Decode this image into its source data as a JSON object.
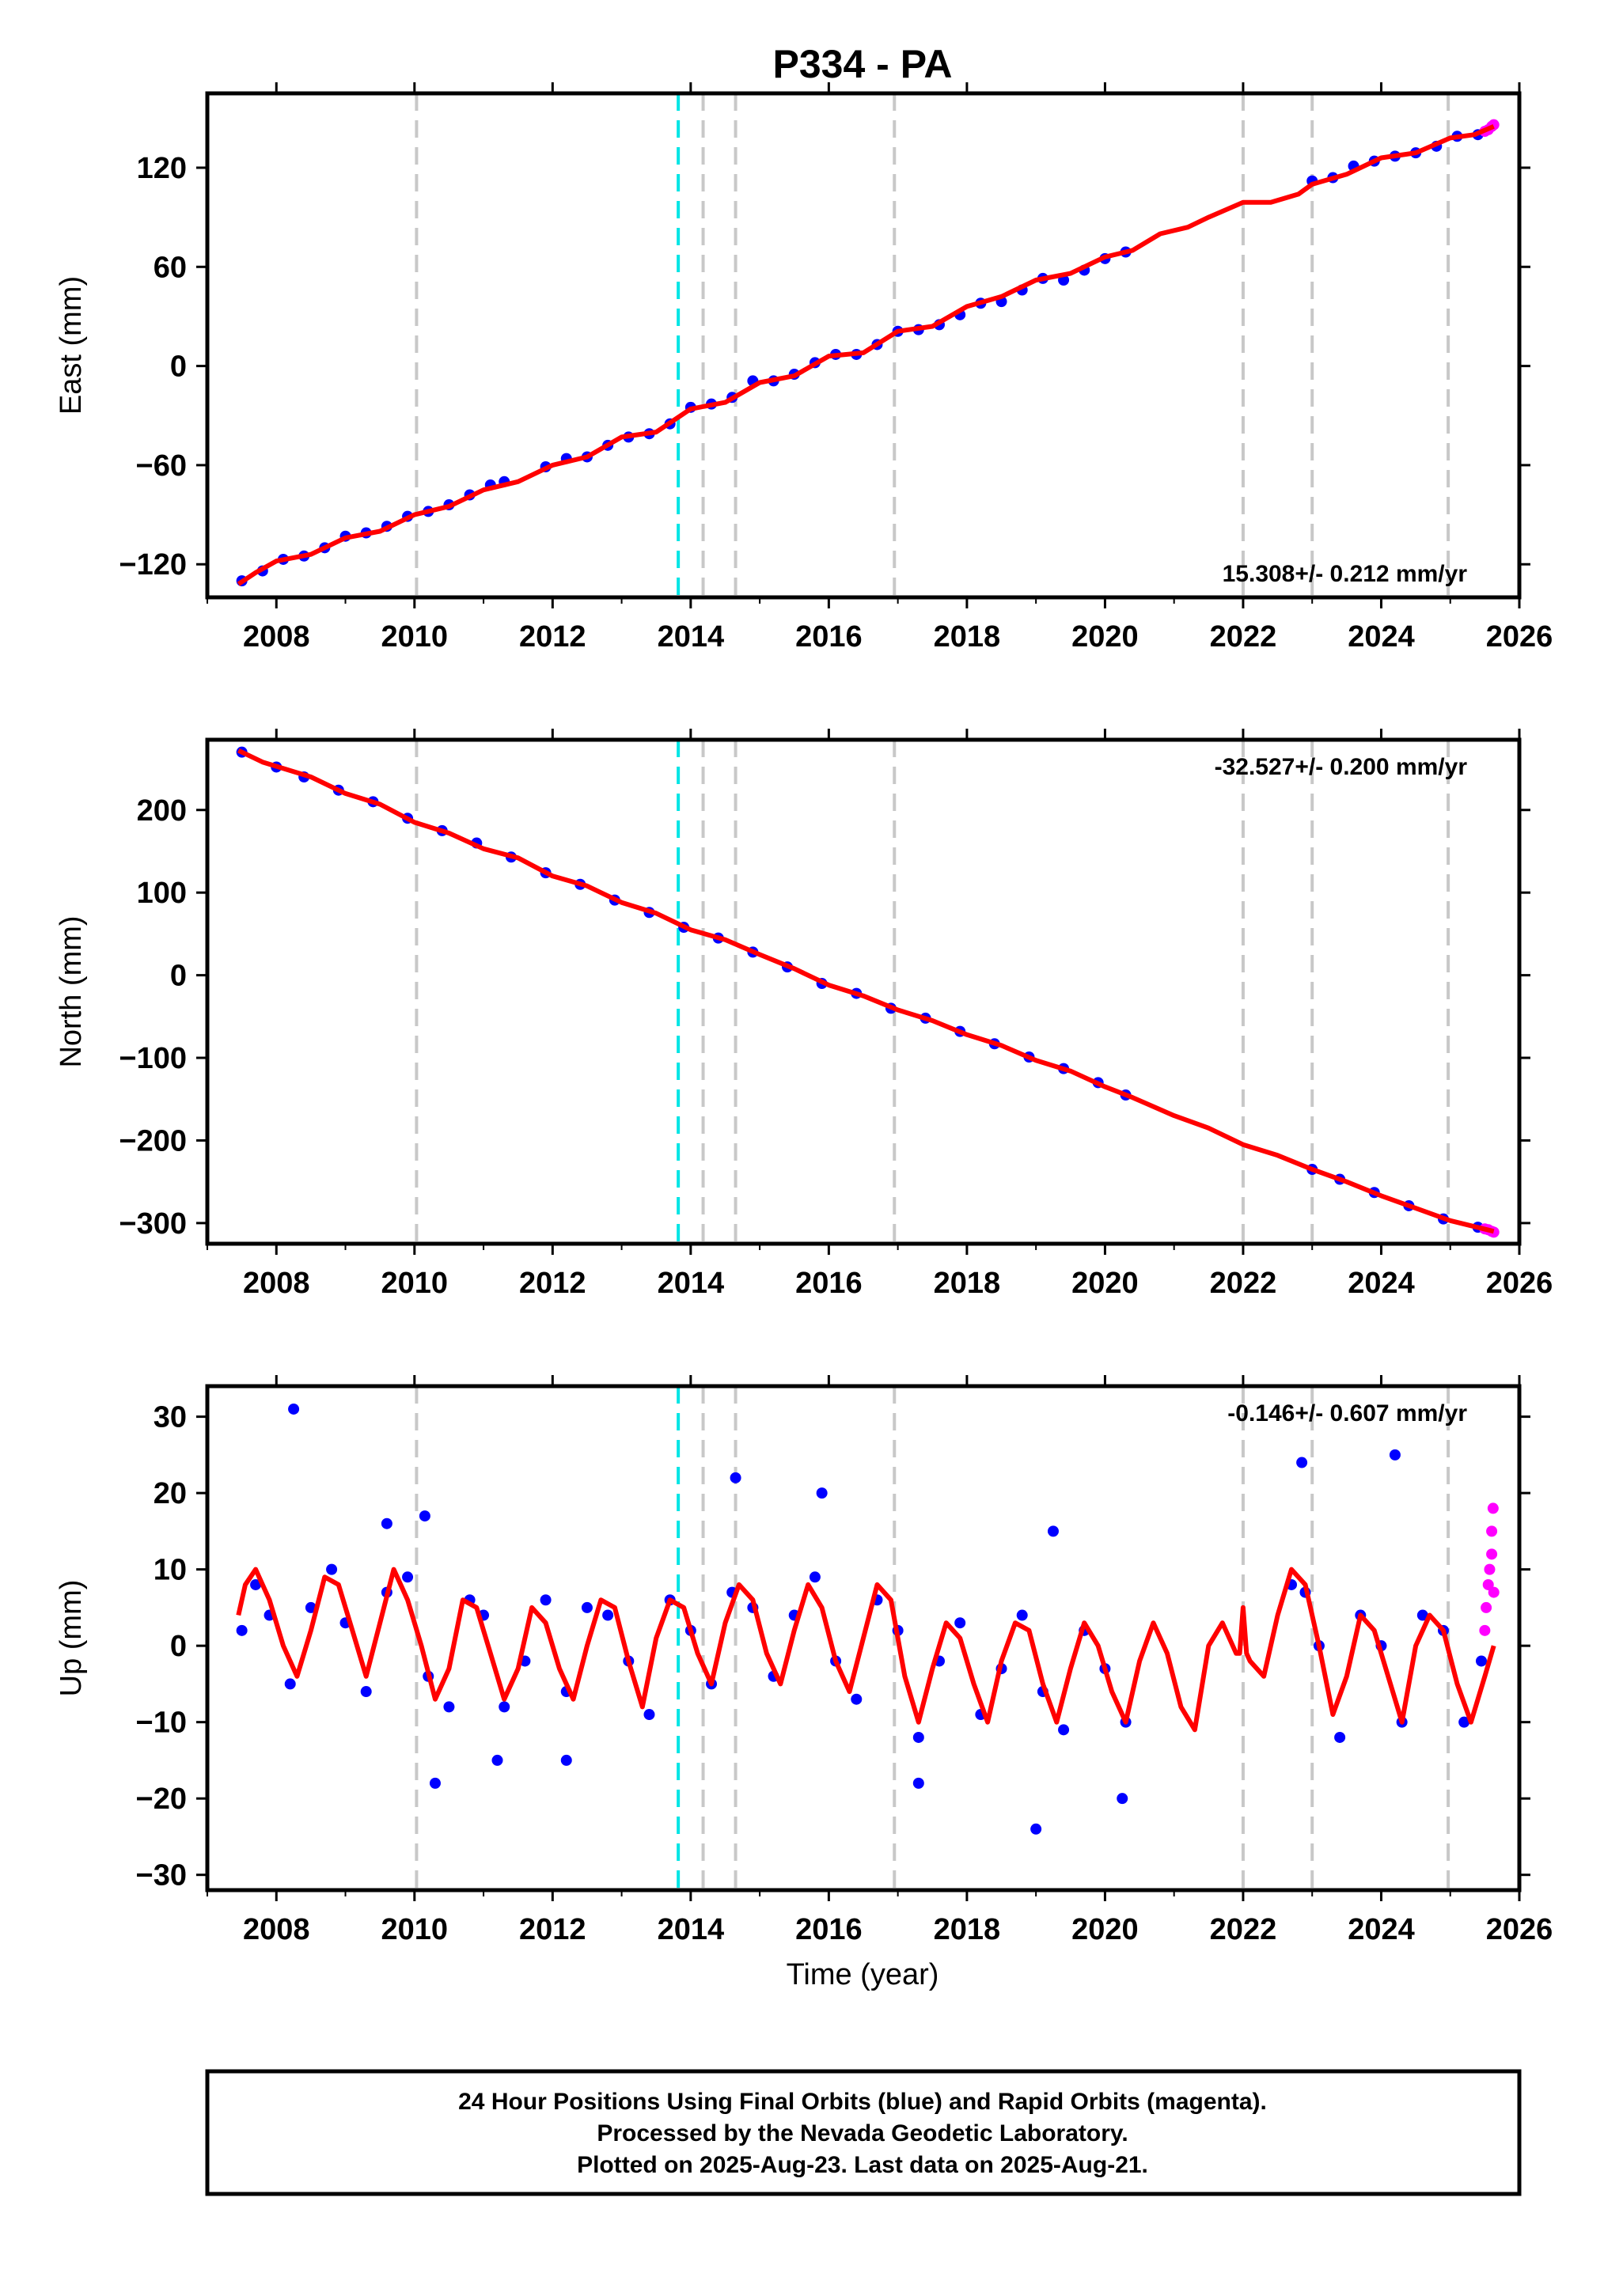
{
  "title": "P334 - PA",
  "xlabel": "Time (year)",
  "caption": [
    "24 Hour Positions Using Final Orbits (blue) and Rapid Orbits (magenta).",
    "Processed by the Nevada Geodetic Laboratory.",
    "Plotted on 2025-Aug-23. Last data on 2025-Aug-21."
  ],
  "colors": {
    "final_orbits": "#0000ff",
    "rapid_orbits": "#ff00ff",
    "model_fit": "#ff0000",
    "event_gray": "#c8c8c8",
    "event_cyan": "#00e5e5"
  },
  "chart_data": [
    {
      "type": "scatter",
      "name": "east",
      "ylabel": "East (mm)",
      "rate_label": "15.308+/- 0.212 mm/yr",
      "rate_position": "bottom-right",
      "xlim": [
        2007.0,
        2026.0
      ],
      "ylim": [
        -140,
        165
      ],
      "xticks": [
        2008,
        2010,
        2012,
        2014,
        2016,
        2018,
        2020,
        2022,
        2024,
        2026
      ],
      "yticks": [
        -120,
        -60,
        0,
        60,
        120
      ],
      "events_gray": [
        2010.03,
        2014.18,
        2014.65,
        2016.95,
        2022.0,
        2023.0,
        2024.97
      ],
      "events_cyan": [
        2013.82
      ],
      "series": [
        {
          "role": "fit",
          "color": "#ff0000",
          "x": [
            2007.45,
            2007.7,
            2008.0,
            2008.5,
            2009.0,
            2009.5,
            2010.0,
            2010.5,
            2011.0,
            2011.5,
            2012.0,
            2012.5,
            2013.0,
            2013.5,
            2014.0,
            2014.5,
            2015.0,
            2015.5,
            2016.0,
            2016.5,
            2017.0,
            2017.5,
            2018.0,
            2018.5,
            2019.0,
            2019.5,
            2020.0,
            2020.4,
            2020.8,
            2021.2,
            2021.5,
            2022.0,
            2022.4,
            2022.8,
            2023.0,
            2023.5,
            2024.0,
            2024.5,
            2025.0,
            2025.35,
            2025.63
          ],
          "y": [
            -132,
            -125,
            -118,
            -114,
            -104,
            -100,
            -90,
            -85,
            -75,
            -70,
            -60,
            -55,
            -43,
            -40,
            -26,
            -22,
            -10,
            -6,
            6,
            8,
            21,
            24,
            36,
            42,
            52,
            56,
            66,
            70,
            80,
            84,
            90,
            99,
            99,
            104,
            110,
            116,
            126,
            129,
            138,
            140,
            145
          ]
        },
        {
          "role": "final_orbits",
          "color": "#0000ff",
          "x": [
            2007.5,
            2007.8,
            2008.1,
            2008.4,
            2008.7,
            2009.0,
            2009.3,
            2009.6,
            2009.9,
            2010.2,
            2010.5,
            2010.8,
            2011.1,
            2011.3,
            2011.9,
            2012.2,
            2012.5,
            2012.8,
            2013.1,
            2013.4,
            2013.7,
            2014.0,
            2014.3,
            2014.6,
            2014.9,
            2015.2,
            2015.5,
            2015.8,
            2016.1,
            2016.4,
            2016.7,
            2017.0,
            2017.3,
            2017.6,
            2017.9,
            2018.2,
            2018.5,
            2018.8,
            2019.1,
            2019.4,
            2019.7,
            2020.0,
            2020.3,
            2023.0,
            2023.3,
            2023.6,
            2023.9,
            2024.2,
            2024.5,
            2024.8,
            2025.1,
            2025.4
          ],
          "y": [
            -130,
            -124,
            -117,
            -115,
            -110,
            -103,
            -101,
            -97,
            -91,
            -88,
            -84,
            -78,
            -72,
            -70,
            -61,
            -56,
            -55,
            -48,
            -43,
            -41,
            -35,
            -25,
            -23,
            -19,
            -9,
            -9,
            -5,
            2,
            7,
            7,
            13,
            21,
            22,
            25,
            31,
            38,
            39,
            46,
            53,
            52,
            58,
            65,
            69,
            112,
            114,
            121,
            124,
            127,
            129,
            133,
            139,
            140
          ]
        },
        {
          "role": "rapid_orbits",
          "color": "#ff00ff",
          "x": [
            2025.5,
            2025.55,
            2025.6,
            2025.63
          ],
          "y": [
            142,
            143,
            145,
            146
          ]
        }
      ]
    },
    {
      "type": "scatter",
      "name": "north",
      "ylabel": "North (mm)",
      "rate_label": "-32.527+/- 0.200 mm/yr",
      "rate_position": "top-right",
      "xlim": [
        2007.0,
        2026.0
      ],
      "ylim": [
        -325,
        285
      ],
      "xticks": [
        2008,
        2010,
        2012,
        2014,
        2016,
        2018,
        2020,
        2022,
        2024,
        2026
      ],
      "yticks": [
        -300,
        -200,
        -100,
        0,
        100,
        200
      ],
      "events_gray": [
        2010.03,
        2014.18,
        2014.65,
        2016.95,
        2022.0,
        2023.0,
        2024.97
      ],
      "events_cyan": [
        2013.82
      ],
      "series": [
        {
          "role": "fit",
          "color": "#ff0000",
          "x": [
            2007.45,
            2007.8,
            2008.5,
            2009.0,
            2009.5,
            2010.0,
            2010.5,
            2011.0,
            2011.5,
            2012.0,
            2012.5,
            2013.0,
            2013.5,
            2014.0,
            2014.5,
            2015.0,
            2015.5,
            2016.0,
            2016.5,
            2017.0,
            2017.5,
            2018.0,
            2018.5,
            2019.0,
            2019.5,
            2020.0,
            2020.4,
            2021.0,
            2021.5,
            2022.0,
            2022.5,
            2023.0,
            2023.5,
            2024.0,
            2024.5,
            2025.0,
            2025.63
          ],
          "y": [
            272,
            258,
            240,
            220,
            207,
            185,
            172,
            153,
            142,
            120,
            108,
            88,
            75,
            55,
            43,
            25,
            8,
            -12,
            -25,
            -42,
            -55,
            -72,
            -85,
            -103,
            -116,
            -135,
            -148,
            -170,
            -185,
            -205,
            -218,
            -235,
            -250,
            -267,
            -282,
            -297,
            -310
          ]
        },
        {
          "role": "final_orbits",
          "color": "#0000ff",
          "x": [
            2007.5,
            2008.0,
            2008.4,
            2008.9,
            2009.4,
            2009.9,
            2010.4,
            2010.9,
            2011.4,
            2011.9,
            2012.4,
            2012.9,
            2013.4,
            2013.9,
            2014.4,
            2014.9,
            2015.4,
            2015.9,
            2016.4,
            2016.9,
            2017.4,
            2017.9,
            2018.4,
            2018.9,
            2019.4,
            2019.9,
            2020.3,
            2023.0,
            2023.4,
            2023.9,
            2024.4,
            2024.9,
            2025.4
          ],
          "y": [
            270,
            252,
            240,
            224,
            210,
            190,
            175,
            160,
            143,
            124,
            110,
            91,
            76,
            58,
            45,
            28,
            10,
            -10,
            -22,
            -40,
            -52,
            -68,
            -83,
            -99,
            -113,
            -130,
            -145,
            -235,
            -247,
            -263,
            -279,
            -295,
            -305
          ]
        },
        {
          "role": "rapid_orbits",
          "color": "#ff00ff",
          "x": [
            2025.5,
            2025.55,
            2025.6,
            2025.63
          ],
          "y": [
            -307,
            -308,
            -310,
            -311
          ]
        }
      ]
    },
    {
      "type": "scatter",
      "name": "up",
      "ylabel": "Up (mm)",
      "rate_label": "-0.146+/- 0.607 mm/yr",
      "rate_position": "top-right",
      "xlim": [
        2007.0,
        2026.0
      ],
      "ylim": [
        -32,
        34
      ],
      "xticks": [
        2008,
        2010,
        2012,
        2014,
        2016,
        2018,
        2020,
        2022,
        2024,
        2026
      ],
      "yticks": [
        -30,
        -20,
        -10,
        0,
        10,
        20,
        30
      ],
      "events_gray": [
        2010.03,
        2014.18,
        2014.65,
        2016.95,
        2022.0,
        2023.0,
        2024.97
      ],
      "events_cyan": [
        2013.82
      ],
      "series": [
        {
          "role": "fit",
          "color": "#ff0000",
          "x": [
            2007.45,
            2007.55,
            2007.7,
            2007.9,
            2008.1,
            2008.3,
            2008.5,
            2008.7,
            2008.9,
            2009.1,
            2009.3,
            2009.5,
            2009.7,
            2009.9,
            2010.1,
            2010.3,
            2010.5,
            2010.7,
            2010.9,
            2011.1,
            2011.3,
            2011.5,
            2011.7,
            2011.9,
            2012.1,
            2012.3,
            2012.5,
            2012.7,
            2012.9,
            2013.1,
            2013.3,
            2013.5,
            2013.7,
            2013.9,
            2014.1,
            2014.3,
            2014.5,
            2014.7,
            2014.9,
            2015.1,
            2015.3,
            2015.5,
            2015.7,
            2015.9,
            2016.1,
            2016.3,
            2016.5,
            2016.7,
            2016.9,
            2017.1,
            2017.3,
            2017.5,
            2017.7,
            2017.9,
            2018.1,
            2018.3,
            2018.5,
            2018.7,
            2018.9,
            2019.1,
            2019.3,
            2019.5,
            2019.7,
            2019.9,
            2020.1,
            2020.3,
            2020.5,
            2020.7,
            2020.9,
            2021.1,
            2021.3,
            2021.5,
            2021.7,
            2021.9,
            2021.95,
            2022.0,
            2022.05,
            2022.1,
            2022.3,
            2022.5,
            2022.7,
            2022.9,
            2023.1,
            2023.3,
            2023.5,
            2023.7,
            2023.9,
            2024.1,
            2024.3,
            2024.5,
            2024.7,
            2024.9,
            2025.1,
            2025.3,
            2025.5,
            2025.63
          ],
          "y": [
            4,
            8,
            10,
            6,
            0,
            -4,
            2,
            9,
            8,
            2,
            -4,
            3,
            10,
            6,
            0,
            -7,
            -3,
            6,
            5,
            -1,
            -7,
            -3,
            5,
            3,
            -3,
            -7,
            0,
            6,
            5,
            -2,
            -8,
            1,
            6,
            5,
            -1,
            -5,
            3,
            8,
            6,
            -1,
            -5,
            2,
            8,
            5,
            -2,
            -6,
            1,
            8,
            6,
            -4,
            -10,
            -3,
            3,
            1,
            -5,
            -10,
            -2,
            3,
            2,
            -5,
            -10,
            -3,
            3,
            0,
            -6,
            -10,
            -2,
            3,
            -1,
            -8,
            -11,
            0,
            3,
            -1,
            -1,
            5,
            -1,
            -2,
            -4,
            4,
            10,
            8,
            0,
            -9,
            -4,
            4,
            2,
            -4,
            -10,
            0,
            4,
            2,
            -5,
            -10,
            -4,
            0
          ]
        },
        {
          "role": "final_orbits",
          "color": "#0000ff",
          "x": [
            2007.5,
            2007.7,
            2007.9,
            2008.2,
            2008.5,
            2008.8,
            2009.0,
            2009.3,
            2009.6,
            2009.9,
            2010.2,
            2010.5,
            2010.8,
            2011.0,
            2011.3,
            2011.6,
            2011.9,
            2012.2,
            2012.5,
            2012.8,
            2013.1,
            2013.4,
            2013.7,
            2014.0,
            2014.3,
            2014.6,
            2014.9,
            2015.2,
            2015.5,
            2015.8,
            2016.1,
            2016.4,
            2016.7,
            2017.0,
            2017.3,
            2017.6,
            2017.9,
            2018.2,
            2018.5,
            2018.8,
            2019.1,
            2019.4,
            2019.7,
            2020.0,
            2020.3,
            2022.7,
            2022.9,
            2023.1,
            2023.4,
            2023.7,
            2024.0,
            2024.3,
            2024.6,
            2024.9,
            2025.2,
            2025.45,
            2008.25,
            2009.6,
            2010.15,
            2014.65,
            2015.9,
            2019.25,
            2022.85,
            2024.2,
            2010.3,
            2011.2,
            2012.2,
            2017.3,
            2019.0,
            2020.25
          ],
          "y": [
            2,
            8,
            4,
            -5,
            5,
            10,
            3,
            -6,
            7,
            9,
            -4,
            -8,
            6,
            4,
            -8,
            -2,
            6,
            -6,
            5,
            4,
            -2,
            -9,
            6,
            2,
            -5,
            7,
            5,
            -4,
            4,
            9,
            -2,
            -7,
            6,
            2,
            -12,
            -2,
            3,
            -9,
            -3,
            4,
            -6,
            -11,
            2,
            -3,
            -10,
            8,
            7,
            0,
            -12,
            4,
            0,
            -10,
            4,
            2,
            -10,
            -2,
            31,
            16,
            17,
            22,
            20,
            15,
            24,
            25,
            -18,
            -15,
            -15,
            -18,
            -24,
            -20
          ]
        },
        {
          "role": "rapid_orbits",
          "color": "#ff00ff",
          "x": [
            2025.5,
            2025.52,
            2025.55,
            2025.57,
            2025.6,
            2025.6,
            2025.62,
            2025.63
          ],
          "y": [
            2,
            5,
            8,
            10,
            12,
            15,
            18,
            7
          ]
        }
      ]
    }
  ]
}
